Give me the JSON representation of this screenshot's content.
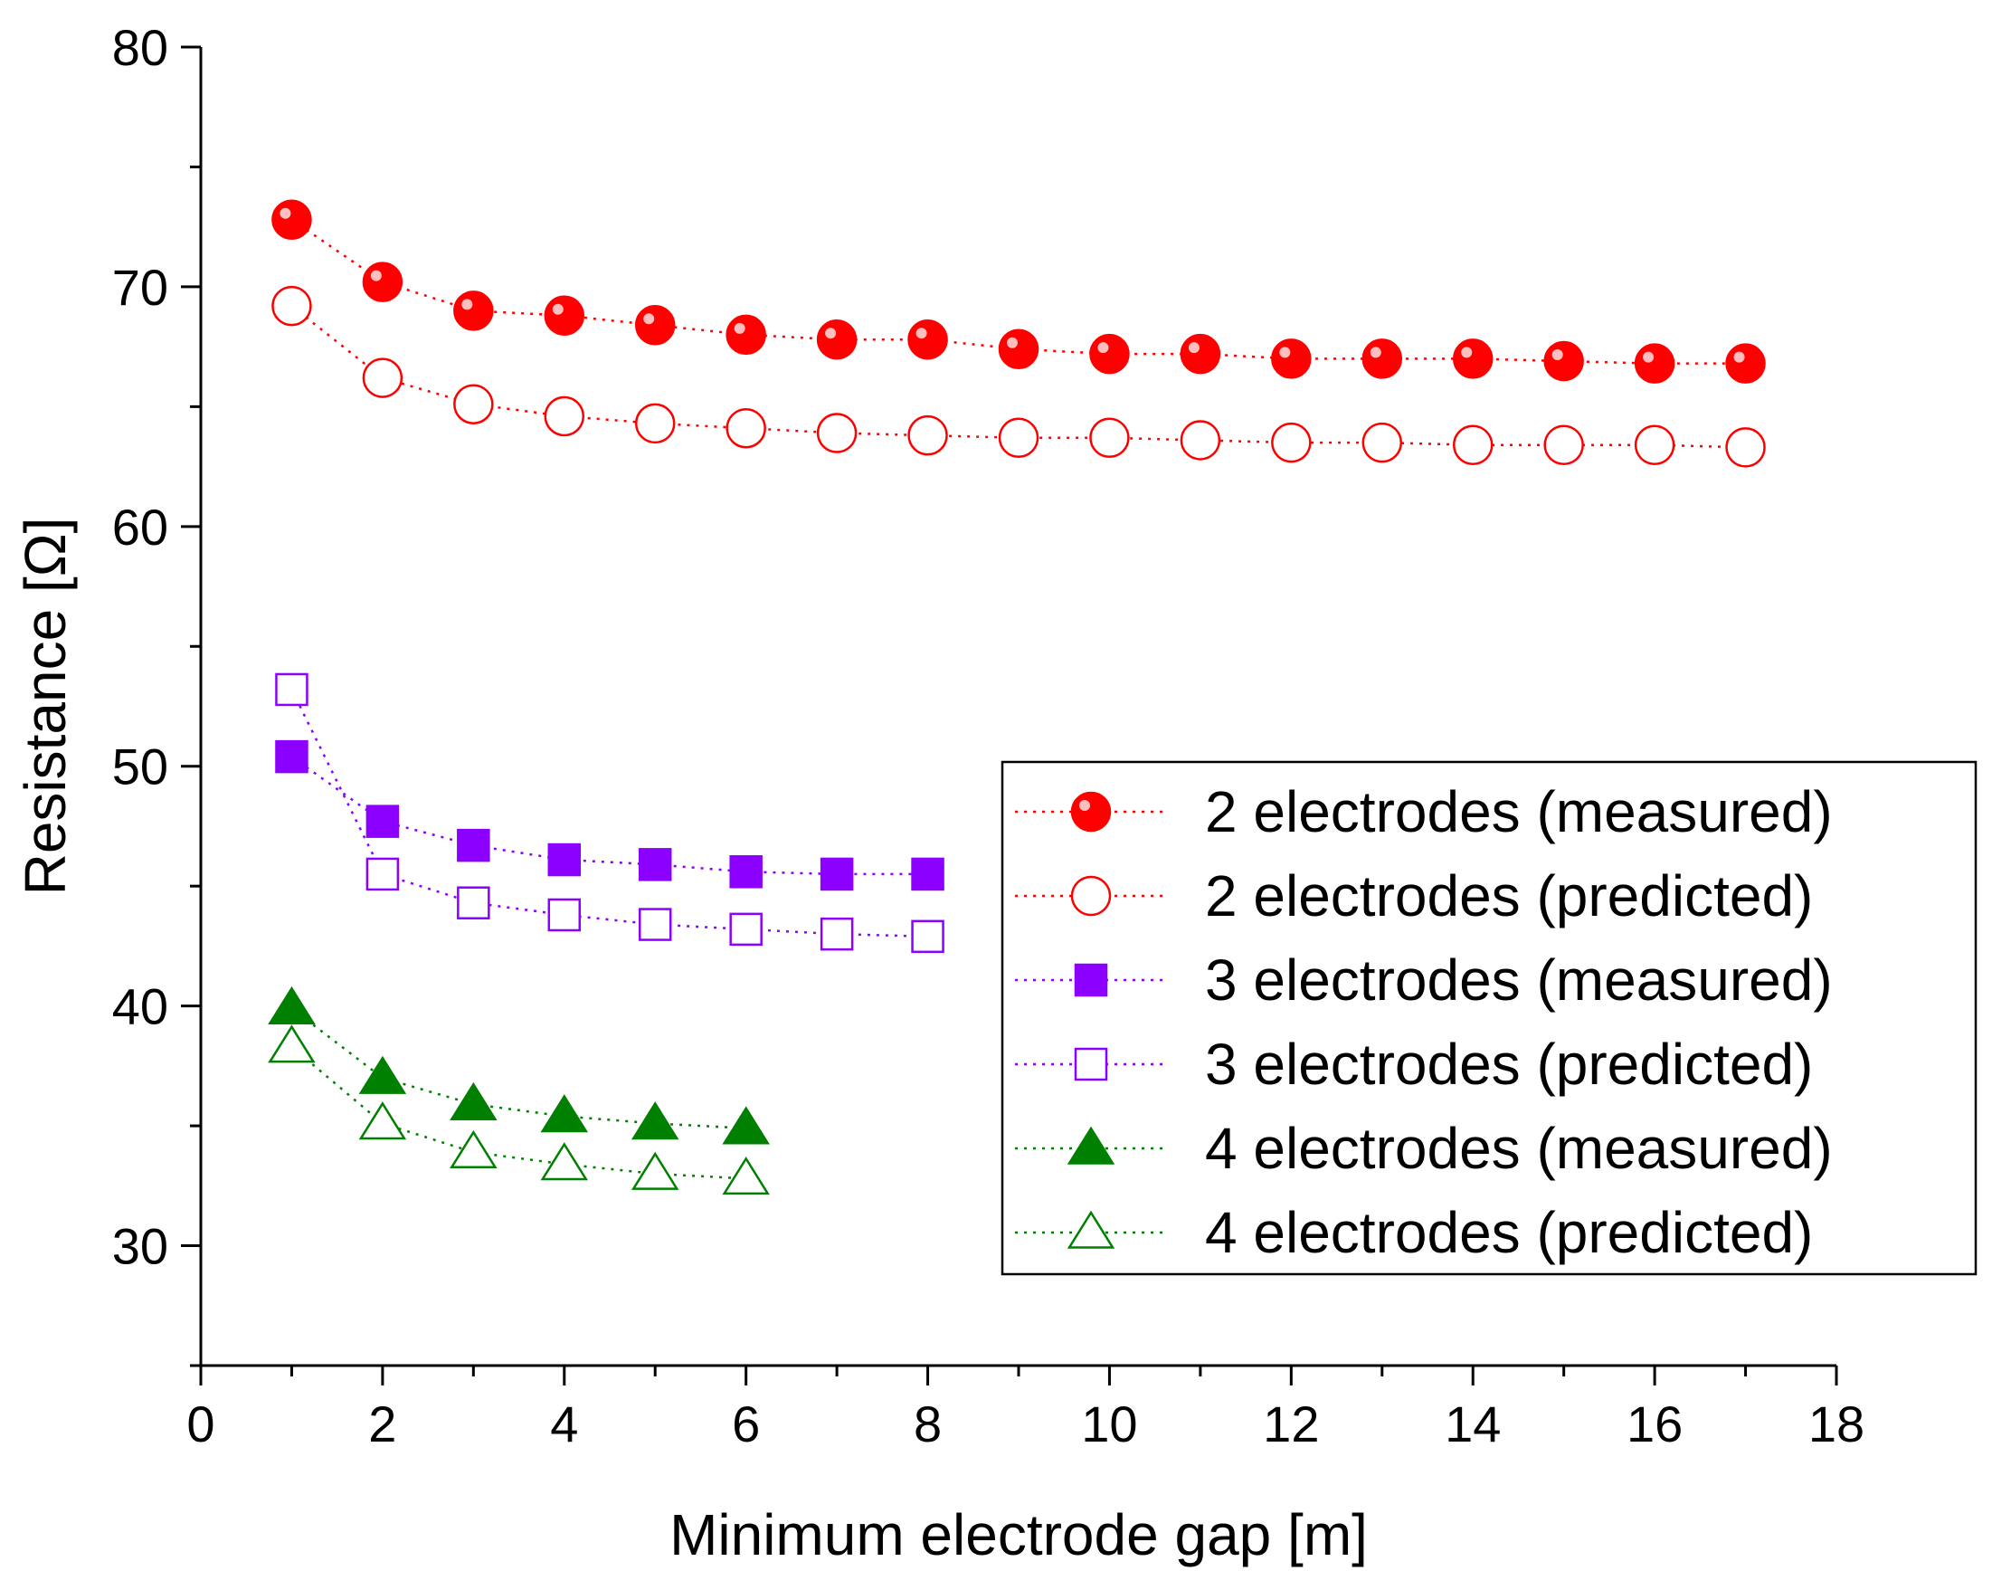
{
  "chart_data": {
    "type": "scatter",
    "title": "",
    "xlabel": "Minimum electrode gap [m]",
    "ylabel": "Resistance [Ω]",
    "xlim": [
      0,
      18
    ],
    "ylim": [
      25,
      80
    ],
    "xticks": [
      0,
      2,
      4,
      6,
      8,
      10,
      12,
      14,
      16,
      18
    ],
    "yticks": [
      30,
      40,
      50,
      60,
      70,
      80
    ],
    "grid": false,
    "legend_position": "center-right",
    "series": [
      {
        "name": "2 electrodes (measured)",
        "marker": "circle-filled",
        "color": "#ff0000",
        "line": "dotted",
        "x": [
          1,
          2,
          3,
          4,
          5,
          6,
          7,
          8,
          9,
          10,
          11,
          12,
          13,
          14,
          15,
          16,
          17
        ],
        "y": [
          72.8,
          70.2,
          69.0,
          68.8,
          68.4,
          68.0,
          67.8,
          67.8,
          67.4,
          67.2,
          67.2,
          67.0,
          67.0,
          67.0,
          66.9,
          66.8,
          66.8
        ]
      },
      {
        "name": "2 electrodes (predicted)",
        "marker": "circle-open",
        "color": "#ff0000",
        "line": "dotted",
        "x": [
          1,
          2,
          3,
          4,
          5,
          6,
          7,
          8,
          9,
          10,
          11,
          12,
          13,
          14,
          15,
          16,
          17
        ],
        "y": [
          69.2,
          66.2,
          65.1,
          64.6,
          64.3,
          64.1,
          63.9,
          63.8,
          63.7,
          63.7,
          63.6,
          63.5,
          63.5,
          63.4,
          63.4,
          63.4,
          63.3
        ]
      },
      {
        "name": "3 electrodes (measured)",
        "marker": "square-filled",
        "color": "#8b00ff",
        "line": "dotted",
        "x": [
          1,
          2,
          3,
          4,
          5,
          6,
          7,
          8
        ],
        "y": [
          50.4,
          47.7,
          46.7,
          46.1,
          45.9,
          45.6,
          45.5,
          45.5
        ]
      },
      {
        "name": "3 electrodes (predicted)",
        "marker": "square-open",
        "color": "#8b00ff",
        "line": "dotted",
        "x": [
          1,
          2,
          3,
          4,
          5,
          6,
          7,
          8
        ],
        "y": [
          53.2,
          45.5,
          44.3,
          43.8,
          43.4,
          43.2,
          43.0,
          42.9
        ]
      },
      {
        "name": "4 electrodes (measured)",
        "marker": "triangle-filled",
        "color": "#008000",
        "line": "dotted",
        "x": [
          1,
          2,
          3,
          4,
          5,
          6
        ],
        "y": [
          39.9,
          37.0,
          35.9,
          35.4,
          35.1,
          34.9
        ]
      },
      {
        "name": "4 electrodes (predicted)",
        "marker": "triangle-open",
        "color": "#008000",
        "line": "dotted",
        "x": [
          1,
          2,
          3,
          4,
          5,
          6
        ],
        "y": [
          38.3,
          35.1,
          33.9,
          33.4,
          33.0,
          32.8
        ]
      }
    ]
  }
}
